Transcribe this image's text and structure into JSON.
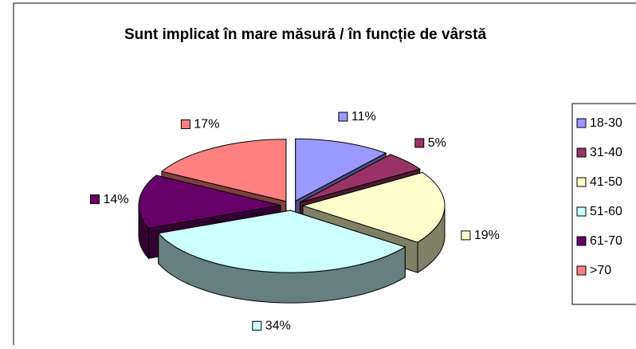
{
  "chart_data": {
    "type": "pie",
    "title": "Sunt implicat în mare măsură / în funcție de vârstă",
    "categories": [
      "18-30",
      "31-40",
      "41-50",
      "51-60",
      "61-70",
      ">70"
    ],
    "values": [
      11,
      5,
      19,
      34,
      14,
      17
    ],
    "value_labels": [
      "11%",
      "5%",
      "19%",
      "34%",
      "14%",
      "17%"
    ],
    "colors": [
      "#9999ff",
      "#993366",
      "#ffffcc",
      "#ccffff",
      "#660066",
      "#ff8080"
    ],
    "legend": "right"
  }
}
